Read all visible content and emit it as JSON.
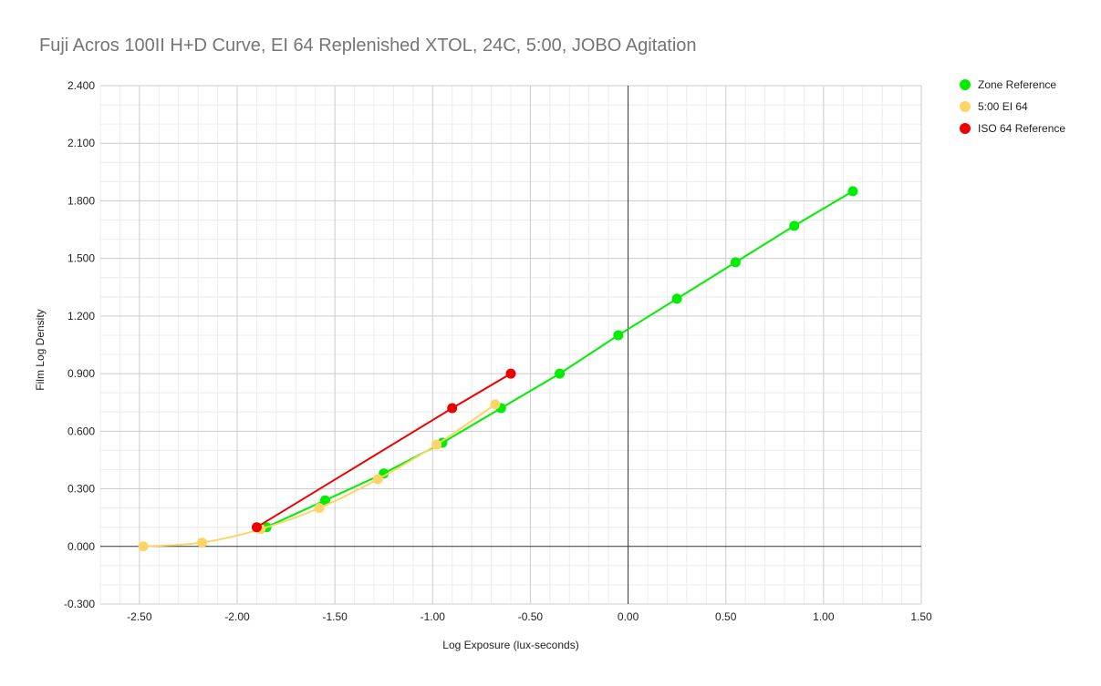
{
  "chart_data": {
    "type": "scatter",
    "title": "Fuji Acros 100II H+D Curve, EI 64 Replenished XTOL, 24C, 5:00, JOBO Agitation",
    "xlabel": "Log Exposure (lux-seconds)",
    "ylabel": "Film Log Density",
    "xlim": [
      -2.7,
      1.5
    ],
    "ylim": [
      -0.3,
      2.4
    ],
    "x_ticks": [
      "-2.50",
      "-2.00",
      "-1.50",
      "-1.00",
      "-0.50",
      "0.00",
      "0.50",
      "1.00",
      "1.50"
    ],
    "y_ticks": [
      "2.400",
      "2.100",
      "1.800",
      "1.500",
      "1.200",
      "0.900",
      "0.600",
      "0.300",
      "0.000",
      "-0.300"
    ],
    "grid": true,
    "legend_position": "right",
    "series": [
      {
        "name": "Zone Reference",
        "color": "#00ee00",
        "smooth": false,
        "points": [
          [
            -1.85,
            0.1
          ],
          [
            -1.55,
            0.24
          ],
          [
            -1.25,
            0.38
          ],
          [
            -0.95,
            0.54
          ],
          [
            -0.65,
            0.72
          ],
          [
            -0.35,
            0.9
          ],
          [
            -0.05,
            1.1
          ],
          [
            0.25,
            1.29
          ],
          [
            0.55,
            1.48
          ],
          [
            0.85,
            1.67
          ],
          [
            1.15,
            1.85
          ]
        ]
      },
      {
        "name": "5:00 EI 64",
        "color": "#fdd466",
        "smooth": true,
        "points": [
          [
            -2.48,
            0.0
          ],
          [
            -2.18,
            0.02
          ],
          [
            -1.88,
            0.09
          ],
          [
            -1.58,
            0.2
          ],
          [
            -1.28,
            0.35
          ],
          [
            -0.98,
            0.53
          ],
          [
            -0.68,
            0.74
          ]
        ]
      },
      {
        "name": "ISO 64 Reference",
        "color": "#ee0000",
        "smooth": false,
        "points": [
          [
            -1.9,
            0.1
          ],
          [
            -0.9,
            0.72
          ],
          [
            -0.6,
            0.9
          ]
        ]
      }
    ]
  }
}
